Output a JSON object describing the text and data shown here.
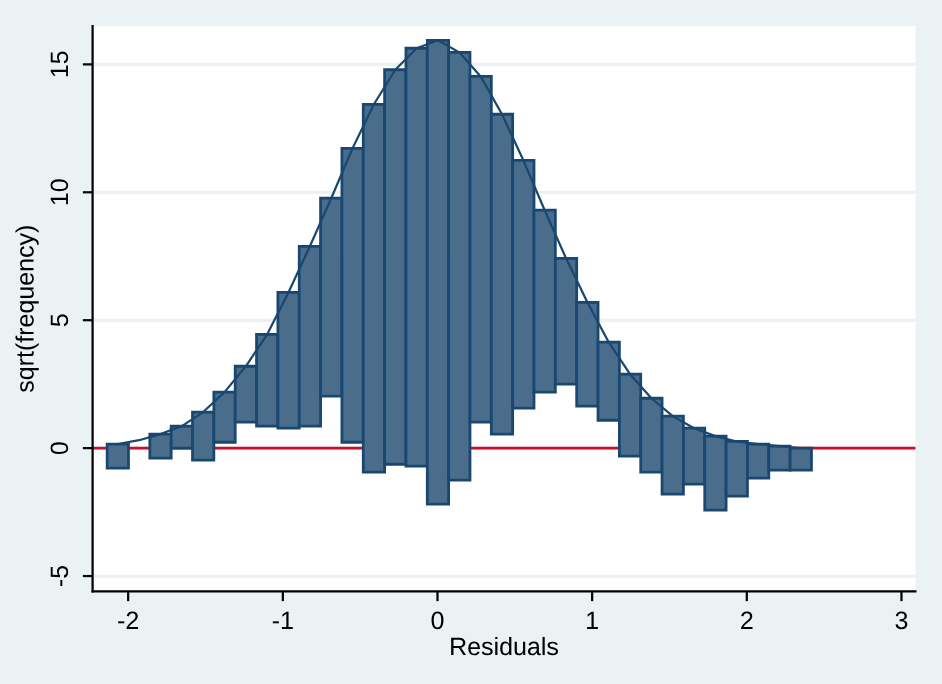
{
  "chart_data": {
    "type": "bar",
    "xlabel": "Residuals",
    "ylabel": "sqrt(frequency)",
    "xlim": [
      -2.23,
      3.09
    ],
    "ylim": [
      -5.6,
      16.5
    ],
    "xticks": [
      -2,
      -1,
      0,
      1,
      2,
      3
    ],
    "yticks": [
      -5,
      0,
      5,
      10,
      15
    ],
    "grid": "y",
    "ref_lines": [
      {
        "axis": "y",
        "value": 0,
        "color": "#c8102e"
      }
    ],
    "series": [
      {
        "color": "#4a6d8c",
        "x": [
          -2.067,
          -1.791,
          -1.653,
          -1.515,
          -1.377,
          -1.239,
          -1.101,
          -0.963,
          -0.825,
          -0.687,
          -0.549,
          -0.411,
          -0.273,
          -0.135,
          0.003,
          0.141,
          0.279,
          0.417,
          0.555,
          0.693,
          0.831,
          0.969,
          1.107,
          1.245,
          1.383,
          1.521,
          1.659,
          1.797,
          1.935,
          2.073,
          2.211,
          2.349
        ],
        "base": [
          -0.78,
          -0.39,
          0,
          -0.47,
          0.23,
          1.02,
          0.86,
          0.78,
          0.86,
          2.03,
          0.23,
          -0.94,
          -0.63,
          -0.7,
          -2.19,
          -1.25,
          1.02,
          0.55,
          1.56,
          2.19,
          2.5,
          1.64,
          1.09,
          -0.31,
          -0.94,
          -1.8,
          -1.41,
          -2.42,
          -1.88,
          -1.17,
          -0.86,
          -0.86
        ],
        "values": [
          0.94,
          0.94,
          0.86,
          1.88,
          1.96,
          2.18,
          3.59,
          5.31,
          7.03,
          7.74,
          11.49,
          14.38,
          15.42,
          16.33,
          18.13,
          16.72,
          13.51,
          12.5,
          9.69,
          7.11,
          4.92,
          4.06,
          3.05,
          3.2,
          2.89,
          3.05,
          2.19,
          2.89,
          2.14,
          1.33,
          0.94,
          0.86
        ]
      },
      {
        "type": "line",
        "color": "#1a476f",
        "x": [
          -2.067,
          -1.929,
          -1.791,
          -1.653,
          -1.515,
          -1.377,
          -1.239,
          -1.101,
          -0.963,
          -0.825,
          -0.687,
          -0.549,
          -0.411,
          -0.273,
          -0.135,
          0.003,
          0.141,
          0.279,
          0.417,
          0.555,
          0.693,
          0.831,
          0.969,
          1.107,
          1.245,
          1.383,
          1.521,
          1.659,
          1.797,
          1.935,
          2.073,
          2.211,
          2.349
        ],
        "values": [
          0.16,
          0.31,
          0.55,
          0.86,
          1.41,
          2.19,
          3.2,
          4.45,
          6.09,
          7.89,
          9.77,
          11.72,
          13.44,
          14.79,
          15.63,
          15.94,
          15.47,
          14.53,
          13.05,
          11.25,
          9.3,
          7.42,
          5.7,
          4.14,
          2.89,
          1.95,
          1.25,
          0.78,
          0.47,
          0.26,
          0.16,
          0.08,
          0
        ]
      }
    ]
  }
}
